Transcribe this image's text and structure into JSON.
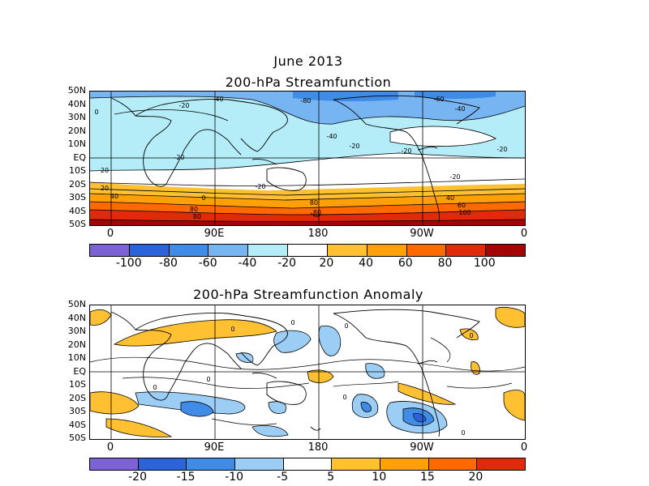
{
  "header": {
    "title": "June 2013"
  },
  "panels": [
    {
      "title": "200-hPa Streamfunction",
      "lat_labels": [
        "50N",
        "40N",
        "30N",
        "20N",
        "10N",
        "EQ",
        "10S",
        "20S",
        "30S",
        "40S",
        "50S"
      ],
      "lon_labels": [
        "0",
        "90E",
        "180",
        "90W",
        "0"
      ],
      "contour_labels": [
        "-80",
        "-60",
        "-40",
        "-40",
        "-40",
        "-20",
        "-20",
        "-20",
        "-20",
        "-20",
        "-20",
        "-20",
        "0",
        "0",
        "20",
        "20",
        "40",
        "40",
        "60",
        "80",
        "80",
        "80",
        "80",
        "100"
      ],
      "colorbar": {
        "labels": [
          "-100",
          "-80",
          "-60",
          "-40",
          "-20",
          "20",
          "40",
          "60",
          "80",
          "100"
        ],
        "colors": [
          "#7d62d6",
          "#2c63d8",
          "#3f8be6",
          "#77b4f2",
          "#b4ecf8",
          "#ffffff",
          "#ffc032",
          "#ffa008",
          "#ff6a00",
          "#e02a0a",
          "#a40404"
        ]
      }
    },
    {
      "title": "200-hPa Streamfunction Anomaly",
      "lat_labels": [
        "50N",
        "40N",
        "30N",
        "20N",
        "10N",
        "EQ",
        "10S",
        "20S",
        "30S",
        "40S",
        "50S"
      ],
      "lon_labels": [
        "0",
        "90E",
        "180",
        "90W",
        "0"
      ],
      "contour_labels": [
        "0",
        "0",
        "0",
        "0",
        "0",
        "0",
        "0",
        "0"
      ],
      "colorbar": {
        "labels": [
          "-20",
          "-15",
          "-10",
          "-5",
          "5",
          "10",
          "15",
          "20"
        ],
        "colors": [
          "#7d62d6",
          "#2c63d8",
          "#3f8be6",
          "#9ccdf5",
          "#ffffff",
          "#ffc032",
          "#ffa008",
          "#ff6a00",
          "#e02a0a"
        ]
      }
    }
  ]
}
